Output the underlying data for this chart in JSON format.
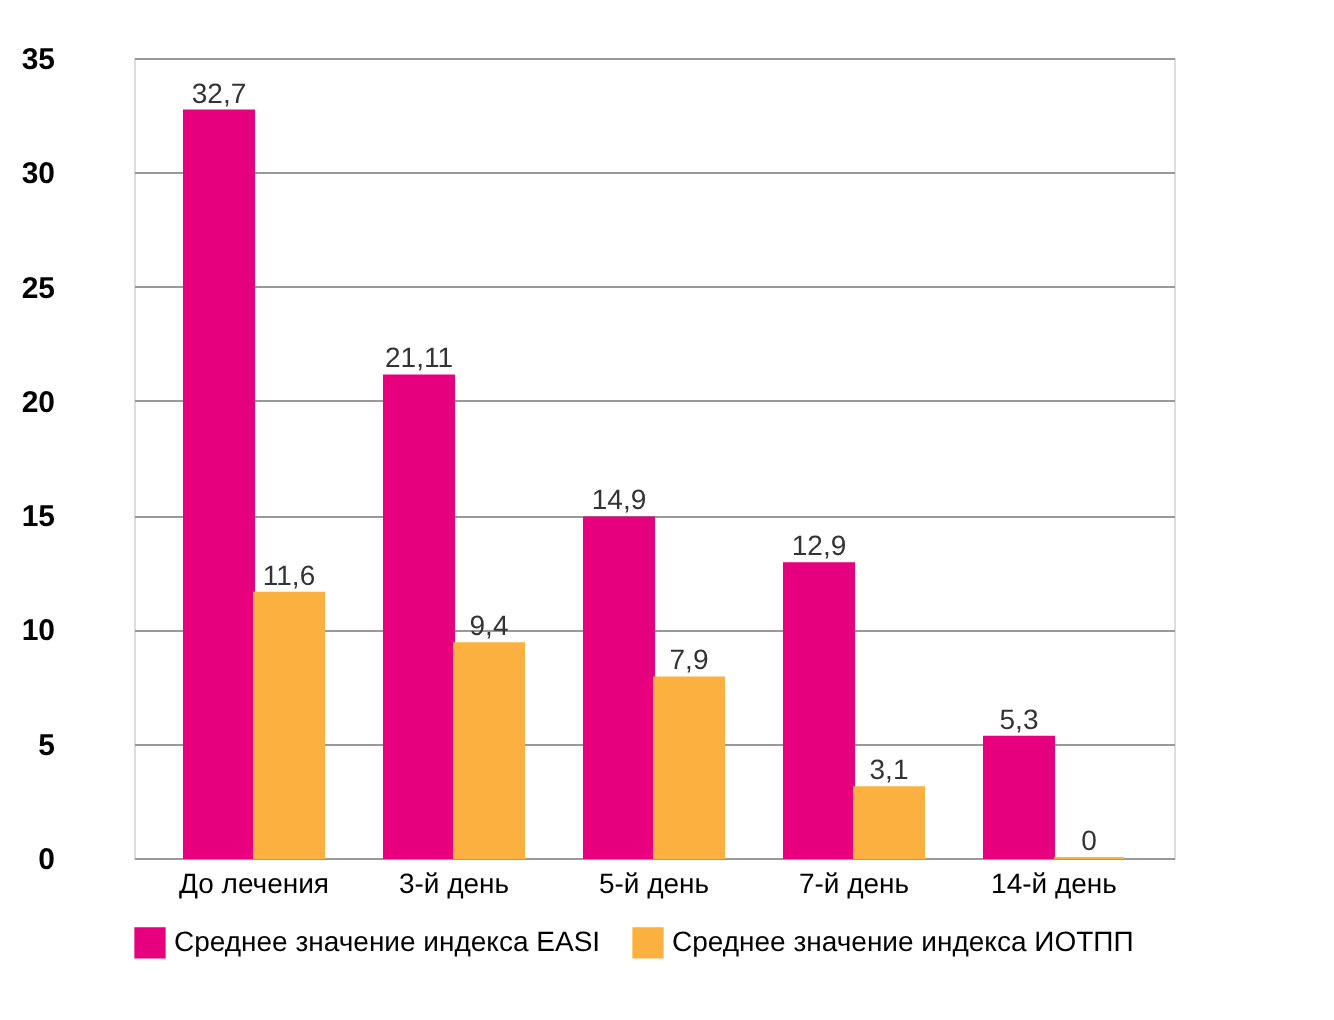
{
  "chart_data": {
    "type": "bar",
    "categories": [
      "До лечения",
      "3-й день",
      "5-й  день",
      "7-й день",
      "14-й день"
    ],
    "series": [
      {
        "name": "Среднее значение индекса EASI",
        "color": "#e6007e",
        "values": [
          32.7,
          21.11,
          14.9,
          12.9,
          5.3
        ],
        "value_labels": [
          "32,7",
          "21,11",
          "14,9",
          "12,9",
          "5,3"
        ]
      },
      {
        "name": "Среднее значение индекса ИОТПП",
        "color": "#fbb040",
        "values": [
          11.6,
          9.4,
          7.9,
          3.1,
          0
        ],
        "value_labels": [
          "11,6",
          "9,4",
          "7,9",
          "3,1",
          "0"
        ]
      }
    ],
    "ylim": [
      0,
      35
    ],
    "yticks": [
      0,
      5,
      10,
      15,
      20,
      25,
      30,
      35
    ],
    "grid": "y",
    "legend": "bottom"
  }
}
